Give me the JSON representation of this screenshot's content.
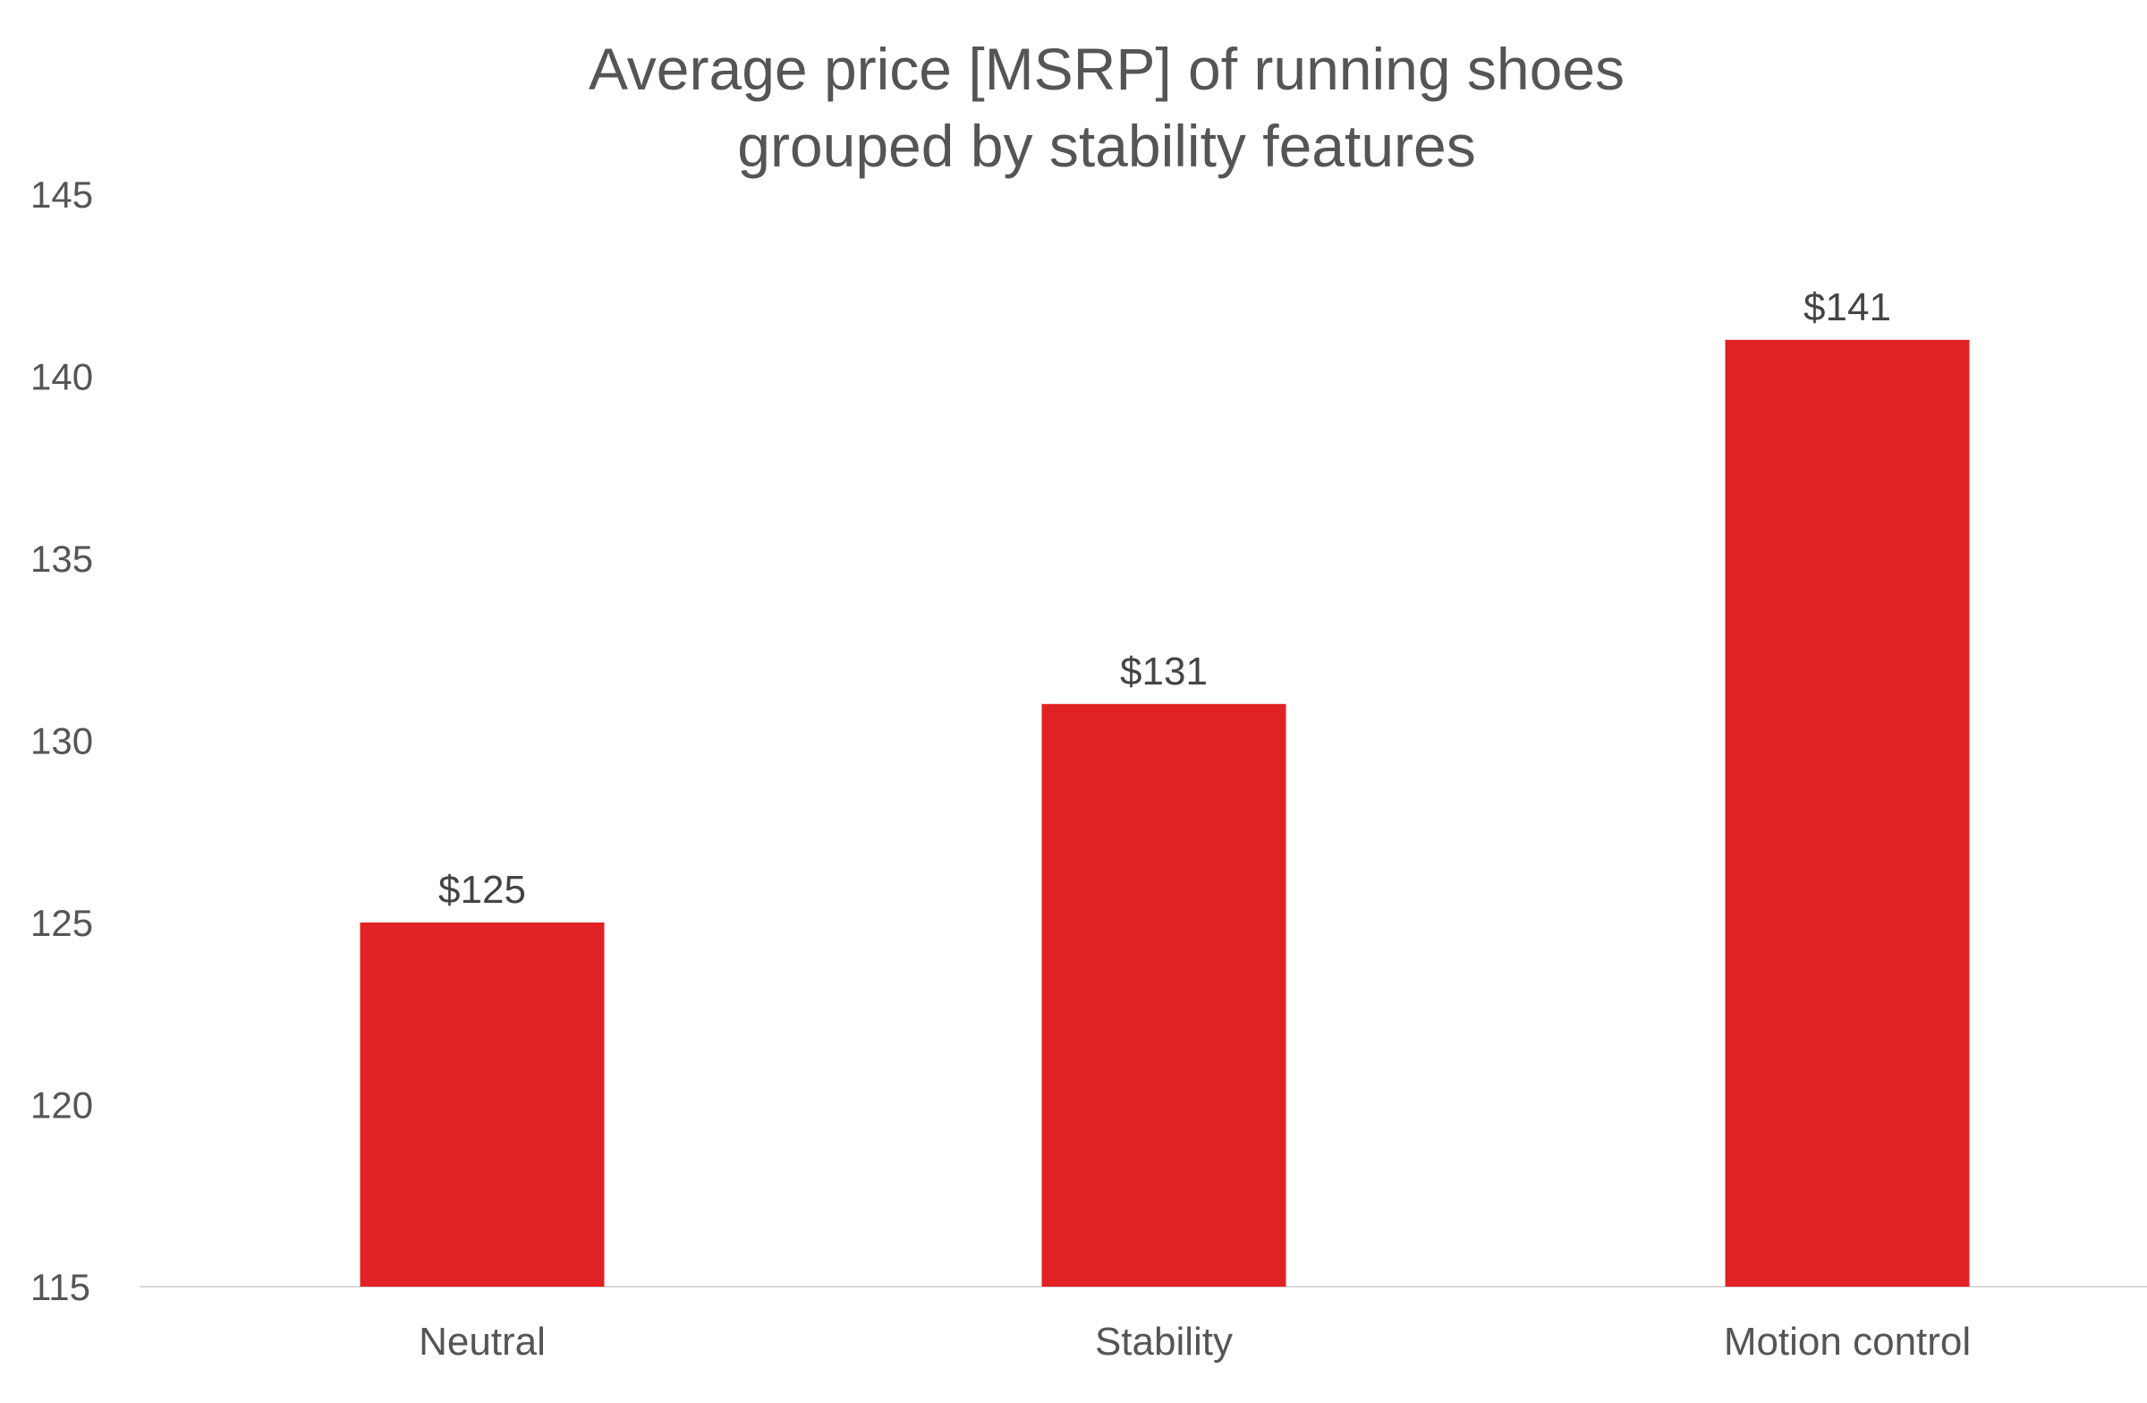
{
  "chart_data": {
    "type": "bar",
    "title_lines": [
      "Average price [MSRP] of running shoes",
      "grouped by stability features"
    ],
    "categories": [
      "Neutral",
      "Stability",
      "Motion control"
    ],
    "values": [
      125,
      131,
      141
    ],
    "data_labels": [
      "$125",
      "$131",
      "$141"
    ],
    "xlabel": "",
    "ylabel": "",
    "ylim": [
      115,
      145
    ],
    "yticks": [
      "115",
      "120",
      "125",
      "130",
      "135",
      "140",
      "145"
    ],
    "grid": false,
    "bar_color": "#e02224"
  }
}
